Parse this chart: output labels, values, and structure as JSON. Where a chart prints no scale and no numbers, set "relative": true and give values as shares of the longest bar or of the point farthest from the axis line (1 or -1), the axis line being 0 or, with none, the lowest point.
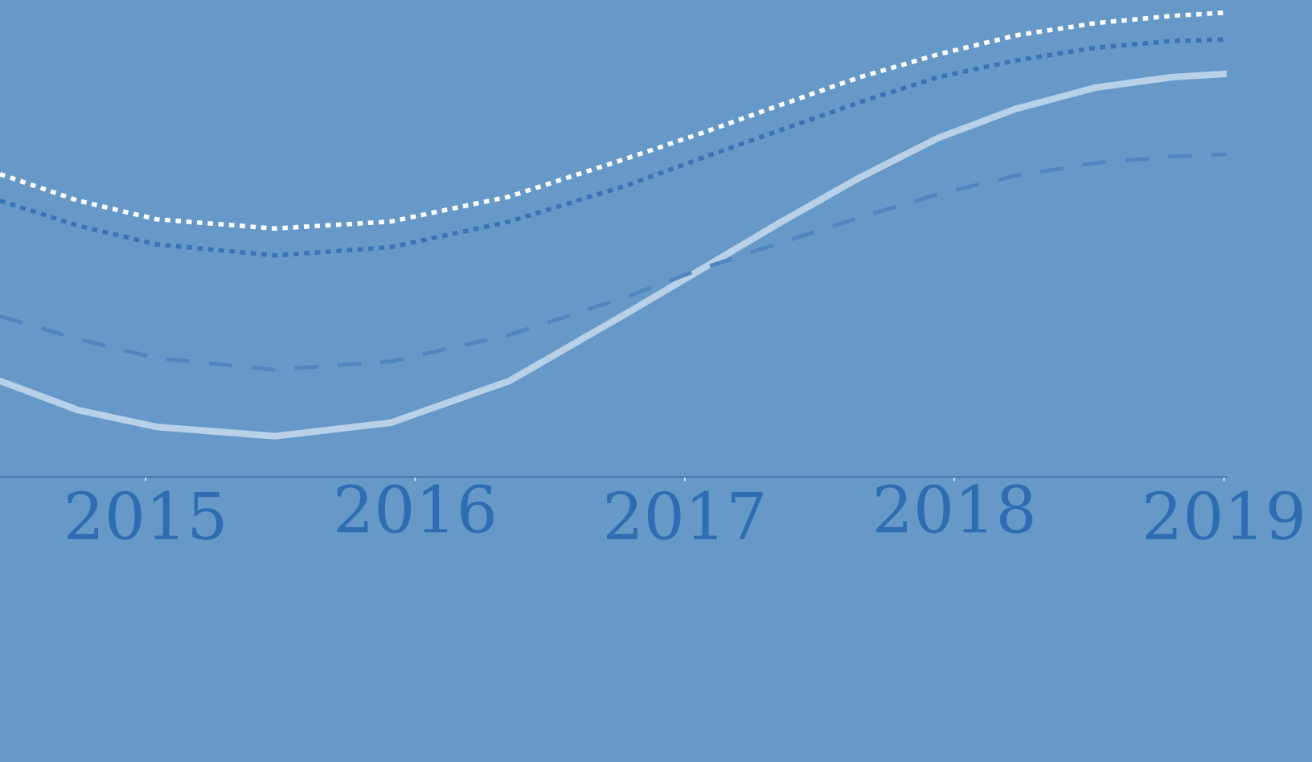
{
  "chart_data": {
    "type": "line",
    "relative": true,
    "xlim": [
      2014.46,
      2019.01
    ],
    "xticks": [
      2015,
      2016,
      2017,
      2018,
      2019
    ],
    "grid": false,
    "marker": "none",
    "series": [
      {
        "color": "#b8d0e8",
        "line_style": "solid",
        "x": [
          2014.46,
          2014.75,
          2015.04,
          2015.48,
          2015.91,
          2016.35,
          2016.78,
          2017.07,
          2017.36,
          2017.65,
          2017.94,
          2018.23,
          2018.52,
          2018.81,
          2019.01
        ],
        "values": [
          0.207,
          0.144,
          0.108,
          0.088,
          0.117,
          0.207,
          0.351,
          0.45,
          0.55,
          0.645,
          0.73,
          0.793,
          0.838,
          0.861,
          0.868
        ]
      },
      {
        "color": "#4f86c0",
        "line_style": "dashed",
        "x": [
          2014.46,
          2014.75,
          2015.04,
          2015.48,
          2015.91,
          2016.35,
          2016.78,
          2017.07,
          2017.36,
          2017.65,
          2017.94,
          2018.23,
          2018.52,
          2018.81,
          2019.01
        ],
        "values": [
          0.346,
          0.297,
          0.256,
          0.231,
          0.249,
          0.306,
          0.387,
          0.45,
          0.505,
          0.559,
          0.609,
          0.649,
          0.676,
          0.69,
          0.695
        ]
      },
      {
        "color": "#3a74b8",
        "line_style": "dotted",
        "x": [
          2014.46,
          2014.75,
          2015.04,
          2015.48,
          2015.91,
          2016.35,
          2016.78,
          2017.07,
          2017.36,
          2017.65,
          2017.94,
          2018.23,
          2018.52,
          2018.81,
          2019.01
        ],
        "values": [
          0.595,
          0.541,
          0.501,
          0.477,
          0.495,
          0.55,
          0.627,
          0.688,
          0.748,
          0.807,
          0.861,
          0.897,
          0.924,
          0.939,
          0.942
        ]
      },
      {
        "color": "#ffffff",
        "line_style": "dotted",
        "x": [
          2014.46,
          2014.75,
          2015.04,
          2015.48,
          2015.91,
          2016.35,
          2016.78,
          2017.07,
          2017.36,
          2017.65,
          2017.94,
          2018.23,
          2018.52,
          2018.81,
          2019.01
        ],
        "values": [
          0.652,
          0.595,
          0.555,
          0.535,
          0.55,
          0.604,
          0.685,
          0.742,
          0.802,
          0.861,
          0.91,
          0.951,
          0.977,
          0.993,
          1.0
        ]
      }
    ]
  }
}
